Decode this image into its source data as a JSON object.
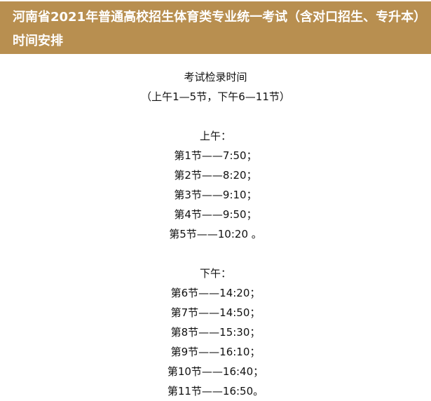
{
  "header": {
    "title": "河南省2021年普通高校招生体育类专业统一考试（含对口招生、专升本）时间安排"
  },
  "content": {
    "heading": "考试检录时间",
    "subheading": "（上午1—5节，下午6—11节）",
    "morning": {
      "label": "上午：",
      "items": [
        "第1节——7:50；",
        "第2节——8:20；",
        "第3节——9:10；",
        "第4节——9:50；",
        "第5节——10:20 。"
      ]
    },
    "afternoon": {
      "label": "下午：",
      "items": [
        "第6节——14:20；",
        "第7节——14:50；",
        "第8节——15:30；",
        "第9节——16:10；",
        "第10节——16:40；",
        "第11节——16:50。"
      ]
    }
  }
}
